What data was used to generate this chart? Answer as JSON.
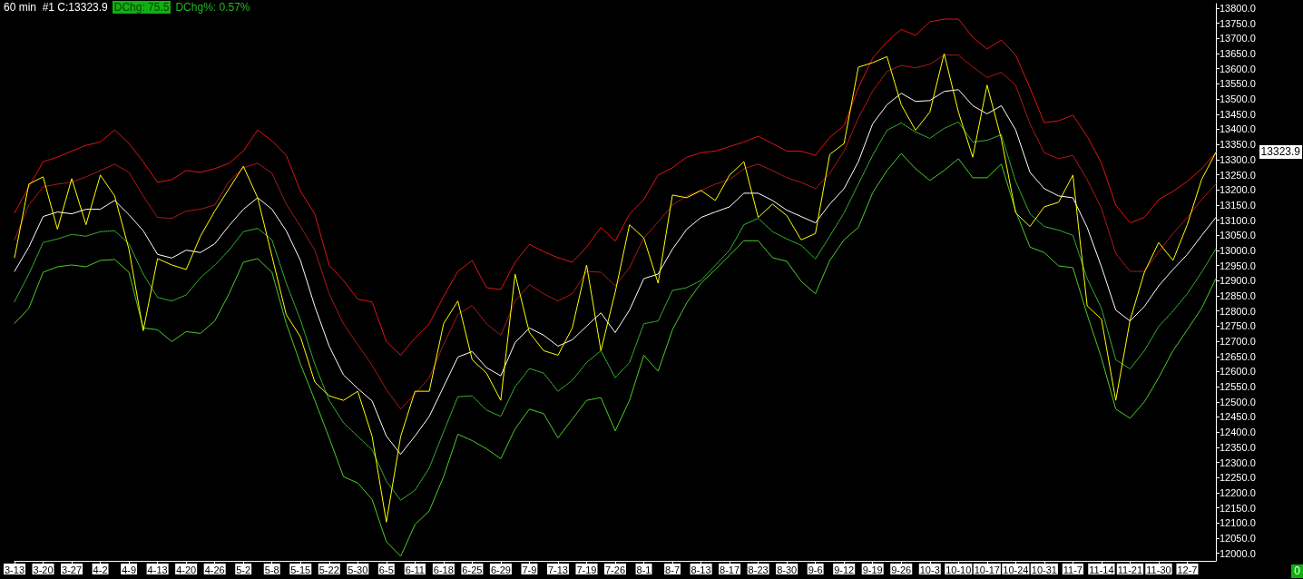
{
  "chart_data": {
    "type": "line",
    "title": "60 min  #1 C:13323.9",
    "categories": [
      "3-13",
      null,
      "3-20",
      null,
      "3-27",
      null,
      "4-2",
      null,
      "4-9",
      null,
      "4-13",
      null,
      "4-20",
      null,
      "4-26",
      null,
      "5-2",
      null,
      "5-8",
      null,
      "5-15",
      null,
      "5-22",
      null,
      "5-30",
      null,
      "6-5",
      null,
      "6-11",
      null,
      "6-18",
      null,
      "6-25",
      null,
      "6-29",
      null,
      "7-9",
      null,
      "7-13",
      null,
      "7-19",
      null,
      "7-26",
      null,
      "8-1",
      null,
      "8-7",
      null,
      "8-13",
      null,
      "8-17",
      null,
      "8-23",
      null,
      "8-30",
      null,
      "9-6",
      null,
      "9-12",
      null,
      "9-19",
      null,
      "9-26",
      null,
      "10-3",
      null,
      "10-10",
      null,
      "10-17",
      null,
      "10-24",
      null,
      "10-31",
      null,
      "11-7",
      null,
      "11-14",
      null,
      "11-21",
      null,
      "11-30",
      null,
      "12-7",
      null,
      null
    ],
    "series": [
      {
        "color": "#e01414",
        "values": [
          13124,
          13210,
          13293,
          13308,
          13328,
          13347,
          13358,
          13398,
          13353,
          13293,
          13225,
          13234,
          13264,
          13258,
          13270,
          13288,
          13328,
          13398,
          13362,
          13314,
          13195,
          13120,
          12951,
          12901,
          12839,
          12830,
          12699,
          12654,
          12711,
          12758,
          12848,
          12931,
          12967,
          12877,
          12871,
          12961,
          13020,
          12996,
          12976,
          12961,
          13011,
          13076,
          13031,
          13120,
          13168,
          13249,
          13273,
          13308,
          13323,
          13328,
          13343,
          13358,
          13377,
          13353,
          13328,
          13328,
          13314,
          13373,
          13412,
          13537,
          13635,
          13689,
          13730,
          13710,
          13755,
          13764,
          13764,
          13704,
          13665,
          13695,
          13645,
          13537,
          13422,
          13428,
          13447,
          13377,
          13288,
          13150,
          13091,
          13109,
          13168,
          13195,
          13228,
          13270,
          13323
        ]
      },
      {
        "color": "#c81e1e",
        "line_style": "dotted",
        "values": [
          13035,
          13150,
          13210,
          13219,
          13225,
          13243,
          13264,
          13285,
          13258,
          13180,
          13109,
          13106,
          13130,
          13136,
          13150,
          13228,
          13273,
          13288,
          13255,
          13153,
          13079,
          13001,
          12857,
          12758,
          12689,
          12621,
          12541,
          12476,
          12526,
          12580,
          12689,
          12788,
          12818,
          12758,
          12720,
          12833,
          12887,
          12857,
          12833,
          12857,
          12931,
          12928,
          12883,
          12943,
          13041,
          13094,
          13150,
          13180,
          13198,
          13219,
          13234,
          13270,
          13285,
          13264,
          13240,
          13225,
          13204,
          13255,
          13328,
          13437,
          13526,
          13591,
          13611,
          13603,
          13615,
          13645,
          13645,
          13606,
          13571,
          13588,
          13546,
          13418,
          13323,
          13303,
          13314,
          13234,
          13139,
          12990,
          12931,
          12931,
          12996,
          13056,
          13109,
          13168,
          13219
        ]
      },
      {
        "color": "#ffffff",
        "values": [
          12931,
          13011,
          13112,
          13127,
          13121,
          13136,
          13136,
          13165,
          13118,
          13065,
          12987,
          12975,
          13001,
          12993,
          13022,
          13082,
          13136,
          13174,
          13136,
          13065,
          12966,
          12815,
          12684,
          12589,
          12544,
          12503,
          12387,
          12327,
          12387,
          12452,
          12550,
          12648,
          12666,
          12613,
          12586,
          12696,
          12744,
          12720,
          12684,
          12705,
          12750,
          12794,
          12729,
          12803,
          12907,
          12922,
          13004,
          13070,
          13109,
          13127,
          13144,
          13189,
          13189,
          13165,
          13133,
          13112,
          13091,
          13153,
          13204,
          13293,
          13418,
          13481,
          13519,
          13492,
          13495,
          13525,
          13531,
          13478,
          13451,
          13478,
          13398,
          13258,
          13204,
          13180,
          13174,
          13076,
          12946,
          12803,
          12767,
          12815,
          12883,
          12937,
          12987,
          13049,
          13109
        ]
      },
      {
        "color": "#3cc83c",
        "line_style": "dotted",
        "values": [
          12831,
          12922,
          13026,
          13038,
          13053,
          13047,
          13062,
          13065,
          13022,
          12922,
          12845,
          12833,
          12853,
          12910,
          12951,
          13001,
          13062,
          13073,
          13035,
          12892,
          12770,
          12624,
          12505,
          12431,
          12386,
          12342,
          12238,
          12175,
          12208,
          12282,
          12401,
          12517,
          12520,
          12473,
          12452,
          12550,
          12610,
          12595,
          12535,
          12571,
          12630,
          12669,
          12580,
          12630,
          12758,
          12767,
          12868,
          12877,
          12901,
          12951,
          13001,
          13085,
          13106,
          13062,
          13038,
          13017,
          12972,
          13047,
          13124,
          13219,
          13314,
          13397,
          13421,
          13391,
          13370,
          13403,
          13424,
          13358,
          13364,
          13382,
          13228,
          13121,
          13079,
          13067,
          13050,
          12907,
          12809,
          12639,
          12609,
          12669,
          12749,
          12800,
          12857,
          12928,
          13005
        ]
      },
      {
        "color": "#4ccc2a",
        "values": [
          12759,
          12809,
          12928,
          12946,
          12952,
          12946,
          12967,
          12970,
          12928,
          12744,
          12738,
          12699,
          12732,
          12726,
          12767,
          12857,
          12961,
          12973,
          12928,
          12759,
          12624,
          12505,
          12381,
          12253,
          12232,
          12178,
          12038,
          11990,
          12095,
          12140,
          12253,
          12393,
          12372,
          12345,
          12312,
          12411,
          12476,
          12461,
          12381,
          12443,
          12505,
          12514,
          12404,
          12505,
          12654,
          12601,
          12738,
          12827,
          12892,
          12937,
          12984,
          13032,
          13032,
          12976,
          12964,
          12898,
          12857,
          12967,
          13035,
          13076,
          13190,
          13264,
          13320,
          13270,
          13231,
          13264,
          13303,
          13240,
          13240,
          13285,
          13130,
          13011,
          12993,
          12949,
          12943,
          12788,
          12645,
          12476,
          12446,
          12500,
          12580,
          12669,
          12738,
          12809,
          12907
        ]
      },
      {
        "color": "#ffff00",
        "values": [
          12976,
          13219,
          13243,
          13070,
          13237,
          13085,
          13249,
          13180,
          13004,
          12735,
          12973,
          12952,
          12937,
          13047,
          13130,
          13204,
          13278,
          13174,
          12981,
          12788,
          12714,
          12565,
          12520,
          12505,
          12535,
          12387,
          12103,
          12386,
          12535,
          12535,
          12758,
          12833,
          12639,
          12595,
          12505,
          12922,
          12729,
          12669,
          12654,
          12744,
          12952,
          12669,
          12862,
          13085,
          13041,
          12892,
          13183,
          13174,
          13198,
          13165,
          13249,
          13293,
          13109,
          13153,
          13115,
          13035,
          13056,
          13317,
          13353,
          13605,
          13620,
          13640,
          13481,
          13397,
          13457,
          13650,
          13457,
          13308,
          13546,
          13368,
          13124,
          13079,
          13144,
          13159,
          13249,
          12817,
          12773,
          12505,
          12770,
          12928,
          13026,
          12967,
          13085,
          13234,
          13324
        ]
      }
    ],
    "ylim": [
      11975,
      13815
    ],
    "yticks": [
      {
        "value": 12000,
        "label": "12000.0"
      },
      {
        "value": 12050,
        "label": "12050.0"
      },
      {
        "value": 12100,
        "label": "12100.0"
      },
      {
        "value": 12150,
        "label": "12150.0"
      },
      {
        "value": 12200,
        "label": "12200.0"
      },
      {
        "value": 12250,
        "label": "12250.0"
      },
      {
        "value": 12300,
        "label": "12300.0"
      },
      {
        "value": 12350,
        "label": "12350.0"
      },
      {
        "value": 12400,
        "label": "12400.0"
      },
      {
        "value": 12450,
        "label": "12450.0"
      },
      {
        "value": 12500,
        "label": "12500.0"
      },
      {
        "value": 12550,
        "label": "12550.0"
      },
      {
        "value": 12600,
        "label": "12600.0"
      },
      {
        "value": 12650,
        "label": "12650.0"
      },
      {
        "value": 12700,
        "label": "12700.0"
      },
      {
        "value": 12750,
        "label": "12750.0"
      },
      {
        "value": 12800,
        "label": "12800.0"
      },
      {
        "value": 12850,
        "label": "12850.0"
      },
      {
        "value": 12900,
        "label": "12900.0"
      },
      {
        "value": 12950,
        "label": "12950.0"
      },
      {
        "value": 13000,
        "label": "13000.0"
      },
      {
        "value": 13050,
        "label": "13050.0"
      },
      {
        "value": 13100,
        "label": "13100.0"
      },
      {
        "value": 13150,
        "label": "13150.0"
      },
      {
        "value": 13200,
        "label": "13200.0"
      },
      {
        "value": 13250,
        "label": "13250.0"
      },
      {
        "value": 13300,
        "label": "13300.0"
      },
      {
        "value": 13350,
        "label": "13350.0"
      },
      {
        "value": 13400,
        "label": "13400.0"
      },
      {
        "value": 13450,
        "label": "13450.0"
      },
      {
        "value": 13500,
        "label": "13500.0"
      },
      {
        "value": 13550,
        "label": "13550.0"
      },
      {
        "value": 13600,
        "label": "13600.0"
      },
      {
        "value": 13650,
        "label": "13650.0"
      },
      {
        "value": 13700,
        "label": "13700.0"
      },
      {
        "value": 13750,
        "label": "13750.0"
      },
      {
        "value": 13800,
        "label": "13800.0"
      }
    ],
    "marker": "none",
    "annotations": [
      "DChg: 75.5",
      "DChg%: 0.57%",
      "0",
      "13323.9"
    ]
  }
}
